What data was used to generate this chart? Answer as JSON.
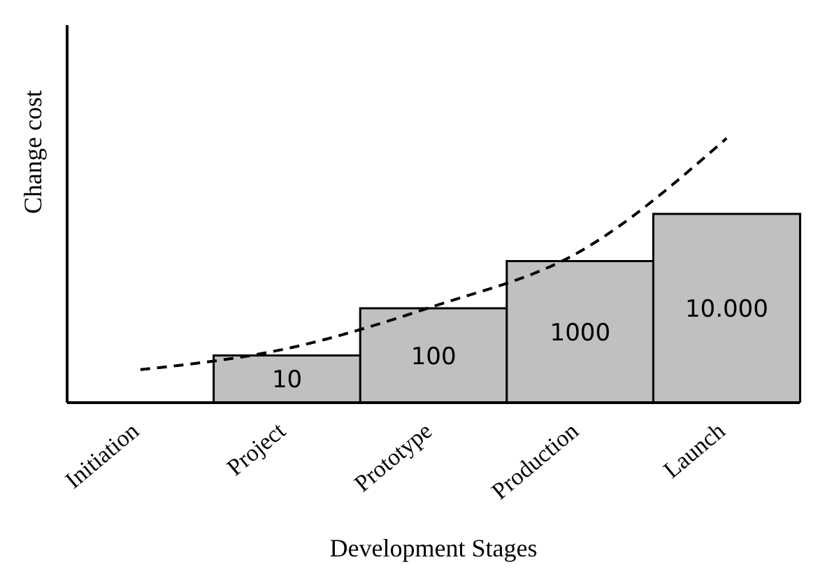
{
  "chart_data": {
    "type": "bar",
    "log": true,
    "ylim": [
      1,
      100000000
    ],
    "tick_labels": "x",
    "xlabel": "Development Stages",
    "ylabel": "Change cost",
    "categories": [
      "Initiation",
      "Project",
      "Prototype",
      "Production",
      "Launch"
    ],
    "series": [
      {
        "color": "#c0c0c0",
        "values": [
          null,
          10,
          100,
          1000,
          10000
        ],
        "value_labels": [
          null,
          "10",
          "100",
          "1000",
          "10.000"
        ]
      },
      {
        "type": "line",
        "color": "#000000",
        "values": [
          5,
          14,
          110,
          1600,
          400000
        ],
        "line_style": "dashed",
        "marker": "none"
      }
    ],
    "grid": false,
    "legend": false
  }
}
